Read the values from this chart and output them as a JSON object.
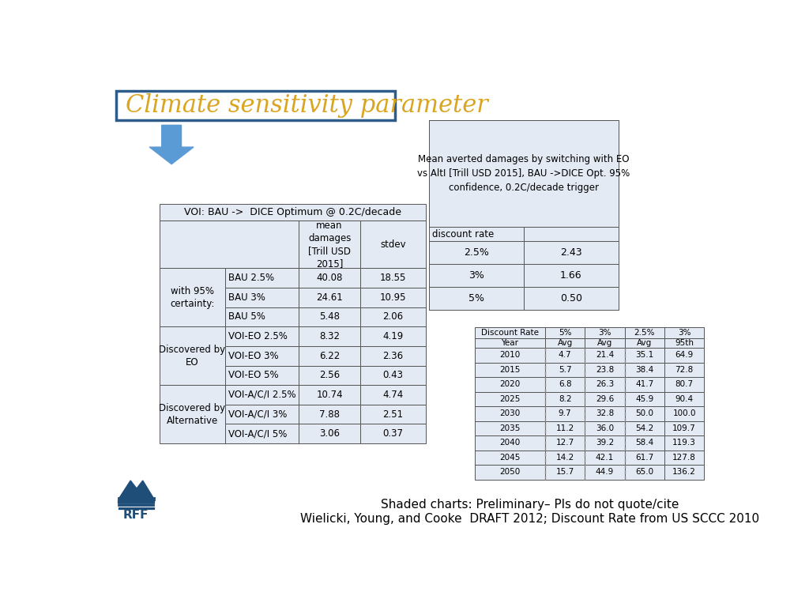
{
  "title": "Climate sensitivity parameter",
  "title_color": "#DAA520",
  "title_border_color": "#2E5C8A",
  "bg_color": "#FFFFFF",
  "table1_title": "VOI: BAU ->  DICE Optimum @ 0.2C/decade",
  "table1_row_groups": [
    {
      "group_label": "with 95%\ncertainty:",
      "rows": [
        [
          "BAU 2.5%",
          "40.08",
          "18.55"
        ],
        [
          "BAU 3%",
          "24.61",
          "10.95"
        ],
        [
          "BAU 5%",
          "5.48",
          "2.06"
        ]
      ]
    },
    {
      "group_label": "Discovered by\nEO",
      "rows": [
        [
          "VOI-EO 2.5%",
          "8.32",
          "4.19"
        ],
        [
          "VOI-EO 3%",
          "6.22",
          "2.36"
        ],
        [
          "VOI-EO 5%",
          "2.56",
          "0.43"
        ]
      ]
    },
    {
      "group_label": "Discovered by\nAlternative",
      "rows": [
        [
          "VOI-A/C/I 2.5%",
          "10.74",
          "4.74"
        ],
        [
          "VOI-A/C/I 3%",
          "7.88",
          "2.51"
        ],
        [
          "VOI-A/C/I 5%",
          "3.06",
          "0.37"
        ]
      ]
    }
  ],
  "table2_title": "Mean averted damages by switching with EO\nvs AltI [Trill USD 2015], BAU ->DICE Opt. 95%\nconfidence, 0.2C/decade trigger",
  "table2_rows": [
    [
      "2.5%",
      "2.43"
    ],
    [
      "3%",
      "1.66"
    ],
    [
      "5%",
      "0.50"
    ]
  ],
  "table3_col_headers": [
    "Discount Rate",
    "5%",
    "3%",
    "2.5%",
    "3%"
  ],
  "table3_sub_headers": [
    "Year",
    "Avg",
    "Avg",
    "Avg",
    "95th"
  ],
  "table3_rows": [
    [
      "2010",
      "4.7",
      "21.4",
      "35.1",
      "64.9"
    ],
    [
      "2015",
      "5.7",
      "23.8",
      "38.4",
      "72.8"
    ],
    [
      "2020",
      "6.8",
      "26.3",
      "41.7",
      "80.7"
    ],
    [
      "2025",
      "8.2",
      "29.6",
      "45.9",
      "90.4"
    ],
    [
      "2030",
      "9.7",
      "32.8",
      "50.0",
      "100.0"
    ],
    [
      "2035",
      "11.2",
      "36.0",
      "54.2",
      "109.7"
    ],
    [
      "2040",
      "12.7",
      "39.2",
      "58.4",
      "119.3"
    ],
    [
      "2045",
      "14.2",
      "42.1",
      "61.7",
      "127.8"
    ],
    [
      "2050",
      "15.7",
      "44.9",
      "65.0",
      "136.2"
    ]
  ],
  "footer_line1": "Shaded charts: Preliminary– Pls do not quote/cite",
  "footer_line2": "Wielicki, Young, and Cooke  DRAFT 2012; Discount Rate from US SCCC 2010",
  "table_bg": "#E4EAF4",
  "table_border": "#555555",
  "arrow_color": "#5B9BD5"
}
